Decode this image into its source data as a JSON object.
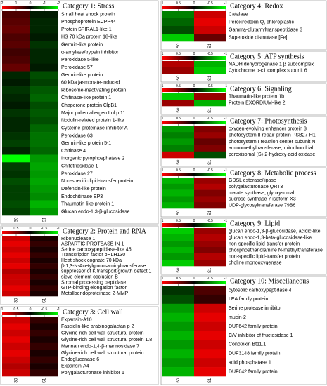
{
  "chart_data": [
    {
      "type": "heatmap",
      "title": "Category 1: Stress",
      "zlim": [
        -2,
        2
      ],
      "zticks": [
        2,
        1,
        0,
        -1,
        -2
      ],
      "colormap": [
        "#00ff00",
        "#000000",
        "#ff0000"
      ],
      "categories": [
        "Small heat shock protein",
        "Phosphoprotein ECPP44",
        "Protein SPIRAL1-like 1",
        "HS 70 kDa protein 18-like",
        "Germin-like protein",
        "α-amylase/trypsin inhibitor",
        "Peroxidase 5-like",
        "Peroxidase 57",
        "Germin-like protein",
        "60 kDa jasmonate-induced",
        "Ribosome-inactivating protein",
        "Chitinase-like protein 1",
        "Chaperone protein ClpB1",
        "Major pollen allergen Lol p 11",
        "Nodulin-related protein 1-like",
        "Cysteine proteinase inhibitor A",
        "Peroxidase 63",
        "Germin-like protein 5-1",
        "Chitinase 4",
        "Inorganic pyrophosphatase 2",
        "Chitotriosidase-1",
        "Peroxidase 27",
        "Non-specific lipid-transfer protein",
        "Defensin-like protein",
        "Endochitinase EP3",
        "Thaumatin-like protein 1",
        "Glucan endo-1,3-β-glucosidase"
      ],
      "series": [
        {
          "name": "S0",
          "values": [
            0.6,
            0.7,
            0.8,
            0.6,
            0.7,
            0.5,
            0.6,
            0.8,
            -0.3,
            -0.2,
            -0.4,
            -0.3,
            -0.2,
            -0.4,
            -0.3,
            -0.3,
            -0.4,
            -0.5,
            -0.3,
            -2,
            -0.5,
            -0.4,
            -0.6,
            -0.5,
            -0.5,
            -0.6,
            -0.5
          ]
        },
        {
          "name": "S1",
          "values": [
            -0.2,
            -0.3,
            -0.3,
            -0.2,
            -0.4,
            -0.3,
            -0.3,
            -0.2,
            -0.6,
            -0.5,
            -0.7,
            -0.8,
            -0.6,
            -0.7,
            -0.6,
            -0.8,
            -0.9,
            -0.9,
            -0.8,
            -1.2,
            -1.3,
            -1.2,
            -1.3,
            -1.2,
            -1.1,
            -1.4,
            -1.2
          ]
        }
      ]
    },
    {
      "type": "heatmap",
      "title": "Category 2: Protein and RNA",
      "zlim": [
        -1,
        1
      ],
      "zticks": [
        1,
        0.5,
        0,
        -0.5,
        -1
      ],
      "colormap": [
        "#00ff00",
        "#000000",
        "#ff0000"
      ],
      "categories": [
        "Ribonuclease 1",
        "ASPARTIC PROTEASE IN 1",
        "Serine carboxypeptidase-like 45",
        "Transcription factor bHLH130",
        "Heat shock cognate 70 kDa",
        "β-1,3-N-Acetylglucosaminyltransferase",
        "suppressor of K transport growth defect 1",
        "sieve element occlusion B",
        "Stromal processing peptidase",
        "GTP-binding elongation factor",
        "Metalloendoproteinase 2-MMP"
      ],
      "series": [
        {
          "name": "S0",
          "values": [
            0.8,
            0.9,
            0.8,
            0.9,
            0.8,
            0.9,
            0.7,
            0.8,
            0.8,
            0.9,
            0.8
          ]
        },
        {
          "name": "S1",
          "values": [
            0.1,
            0.2,
            0.1,
            0.2,
            0.1,
            0.2,
            0.1,
            0.2,
            0.1,
            0.2,
            0.1
          ]
        }
      ]
    },
    {
      "type": "heatmap",
      "title": "Category 3: Cell wall",
      "zlim": [
        -1,
        1
      ],
      "zticks": [
        1,
        0.5,
        0,
        -0.5,
        -1
      ],
      "colormap": [
        "#00ff00",
        "#000000",
        "#ff0000"
      ],
      "categories": [
        "Expansin-A10",
        "Fasciclin-like arabinogalactan p 2",
        "Glycine-rich cell wall structural protein",
        "Glycine-rich cell wall structural protein 1.8",
        "Mannan endo-1,4-β-mannosidase 7",
        "Glycine-rich cell wall structural protein",
        "Endoglucanase 6",
        "Expansin-A4",
        "Polygalacturonase inhibitor 1"
      ],
      "series": [
        {
          "name": "S0",
          "values": [
            0.8,
            0.9,
            0.8,
            0.9,
            0.8,
            0.9,
            0.8,
            0.7,
            0.8
          ]
        },
        {
          "name": "S1",
          "values": [
            0.2,
            0.1,
            0.2,
            0.1,
            0.2,
            0.1,
            0.2,
            0.1,
            0.2
          ]
        }
      ]
    },
    {
      "type": "heatmap",
      "title": "Category 4: Redox",
      "zlim": [
        -1,
        1
      ],
      "zticks": [
        1,
        0.5,
        0,
        -0.5,
        -1
      ],
      "colormap": [
        "#00ff00",
        "#000000",
        "#ff0000"
      ],
      "categories": [
        "Catalase",
        "Peroxiredoxin Q, chloroplastic",
        "Gamma-glutamyltranspeptidase 3",
        "Superoxide dismutase [Fe]"
      ],
      "series": [
        {
          "name": "S0",
          "values": [
            -0.5,
            -0.4,
            -0.3,
            -0.8
          ]
        },
        {
          "name": "S1",
          "values": [
            0.8,
            0.9,
            0.8,
            0.4
          ]
        }
      ]
    },
    {
      "type": "heatmap",
      "title": "Category 5: ATP synthesis",
      "zlim": [
        -1,
        1
      ],
      "zticks": [
        1,
        0.5,
        0,
        -0.5,
        -1
      ],
      "colormap": [
        "#00ff00",
        "#000000",
        "#ff0000"
      ],
      "categories": [
        "NADH dehydrogenase 1 β subcomplex",
        "Cytochrome b-c1 complex subunit 6"
      ],
      "series": [
        {
          "name": "S0",
          "values": [
            0.7,
            0.6
          ]
        },
        {
          "name": "S1",
          "values": [
            -0.7,
            -0.8
          ]
        }
      ]
    },
    {
      "type": "heatmap",
      "title": "Category 6: Signaling",
      "zlim": [
        -1,
        1
      ],
      "zticks": [
        1,
        0.5,
        0,
        -0.5,
        -1
      ],
      "colormap": [
        "#00ff00",
        "#000000",
        "#ff0000"
      ],
      "categories": [
        "Thaumatin-like protein 1b",
        "Protein EXORDIUM-like 2"
      ],
      "series": [
        {
          "name": "S0",
          "values": [
            -0.8,
            0.6
          ]
        },
        {
          "name": "S1",
          "values": [
            0.6,
            -0.7
          ]
        }
      ]
    },
    {
      "type": "heatmap",
      "title": "Category 7: Photosynthesis",
      "zlim": [
        -1,
        1
      ],
      "zticks": [
        1,
        0.5,
        0,
        -0.5,
        -1
      ],
      "colormap": [
        "#00ff00",
        "#000000",
        "#ff0000"
      ],
      "categories": [
        "oxygen-evolving enhancer protein 3",
        "photosystem II repair protein PSB27-H1",
        "photosystem I reaction center subunit N",
        "aminomethyltransferase, mitochondrial",
        "peroxisomal (S)-2-hydroxy-acid oxidase"
      ],
      "series": [
        {
          "name": "S0",
          "values": [
            -0.6,
            -0.5,
            -0.6,
            -0.5,
            0.8
          ]
        },
        {
          "name": "S1",
          "values": [
            0.5,
            0.6,
            0.4,
            0.5,
            -0.3
          ]
        }
      ]
    },
    {
      "type": "heatmap",
      "title": "Category 8: Metabolic process",
      "zlim": [
        -1,
        1
      ],
      "zticks": [
        1,
        0.5,
        0,
        -0.5,
        -1
      ],
      "colormap": [
        "#00ff00",
        "#000000",
        "#ff0000"
      ],
      "categories": [
        "GDSL esterase/lipase",
        "polygalacturonase QRT3",
        "malate synthase, glyoxysomal",
        "sucrose synthase 7 isoform X3",
        "UDP-glycosyltransferase 79B6"
      ],
      "series": [
        {
          "name": "S0",
          "values": [
            -0.7,
            -0.6,
            -0.7,
            -0.6,
            -0.7
          ]
        },
        {
          "name": "S1",
          "values": [
            0.6,
            0.7,
            0.5,
            0.6,
            0.5
          ]
        }
      ]
    },
    {
      "type": "heatmap",
      "title": "Category 9: Lipid",
      "zlim": [
        -1,
        1
      ],
      "zticks": [
        1,
        0.5,
        0,
        -0.5,
        -1
      ],
      "colormap": [
        "#00ff00",
        "#000000",
        "#ff0000"
      ],
      "categories": [
        "glucan endo-1,3-β-glucosidase, acidic-like",
        "glucan endo-1,3-beta-glucosidase-like",
        "non-specific lipid-transfer protein",
        "phosphoethanolamine N-methyltransferase",
        "non-specific lipid-transfer protein",
        "choline monooxygenase"
      ],
      "series": [
        {
          "name": "S0",
          "values": [
            -0.8,
            -0.7,
            -0.6,
            -0.7,
            -0.6,
            -0.8
          ]
        },
        {
          "name": "S1",
          "values": [
            0.6,
            0.7,
            0.6,
            0.5,
            0.7,
            0.6
          ]
        }
      ]
    },
    {
      "type": "heatmap",
      "title": "Category 10: Miscellaneous",
      "zlim": [
        -1,
        1
      ],
      "zticks": [
        1,
        0.5,
        0,
        -0.5,
        -1
      ],
      "colormap": [
        "#00ff00",
        "#000000",
        "#ff0000"
      ],
      "categories": [
        "cytosolic carboxypeptidase 4",
        "LEA family protein",
        "Serine protease inhibitor",
        "mucin-2",
        "DUF642 family protein",
        "C/V inhibitor of fructosidase 1",
        "Conotoxin Bt11.1",
        "DUF3148 family protein",
        "acid phosphatase 1",
        "DUF642 family protein"
      ],
      "series": [
        {
          "name": "S0",
          "values": [
            -0.2,
            -0.3,
            -0.6,
            -0.7,
            -0.6,
            -0.7,
            -0.6,
            -0.7,
            -0.6,
            -0.7
          ]
        },
        {
          "name": "S1",
          "values": [
            0.3,
            0.2,
            0.8,
            0.9,
            0.8,
            0.9,
            0.8,
            0.9,
            0.8,
            0.9
          ]
        }
      ]
    }
  ]
}
